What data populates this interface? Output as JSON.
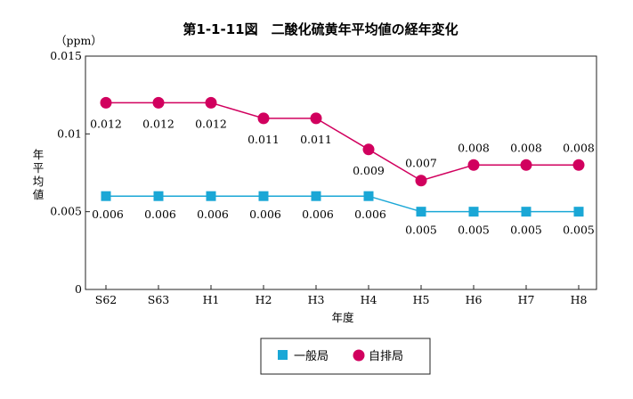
{
  "chart_data": {
    "type": "line",
    "title": "第1-1-11図　二酸化硫黄年平均値の経年変化",
    "unit_label": "（ppm）",
    "ylabel": "年平均値",
    "xlabel": "年度",
    "categories": [
      "S62",
      "S63",
      "H1",
      "H2",
      "H3",
      "H4",
      "H5",
      "H6",
      "H7",
      "H8"
    ],
    "ylim": [
      0,
      0.015
    ],
    "yticks": [
      "0",
      "0.005",
      "0.01",
      "0.015"
    ],
    "grid": false,
    "legend_position": "bottom-center",
    "series": [
      {
        "name": "一般局",
        "marker": "square",
        "color": "#1aa7d6",
        "values": [
          0.006,
          0.006,
          0.006,
          0.006,
          0.006,
          0.006,
          0.005,
          0.005,
          0.005,
          0.005
        ],
        "labels": [
          "0.006",
          "0.006",
          "0.006",
          "0.006",
          "0.006",
          "0.006",
          "0.005",
          "0.005",
          "0.005",
          "0.005"
        ]
      },
      {
        "name": "自排局",
        "marker": "circle",
        "color": "#d1005e",
        "values": [
          0.012,
          0.012,
          0.012,
          0.011,
          0.011,
          0.009,
          0.007,
          0.008,
          0.008,
          0.008
        ],
        "labels": [
          "0.012",
          "0.012",
          "0.012",
          "0.011",
          "0.011",
          "0.009",
          "0.007",
          "0.008",
          "0.008",
          "0.008"
        ]
      }
    ]
  }
}
